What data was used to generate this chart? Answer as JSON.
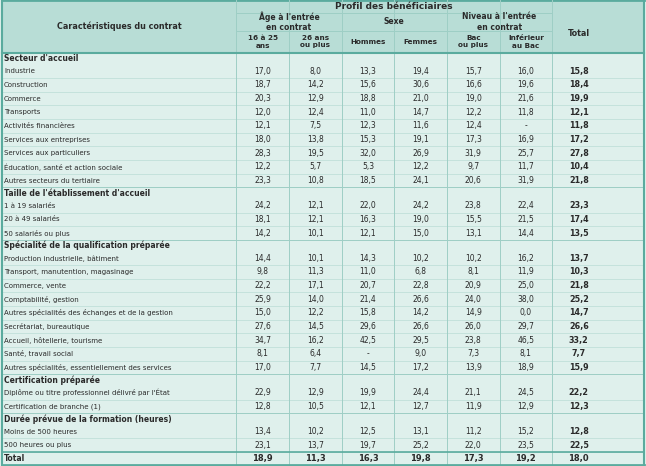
{
  "sections": [
    {
      "title": "Secteur d'accueil",
      "rows": [
        [
          "Industrie",
          17.0,
          8.0,
          13.3,
          19.4,
          15.7,
          16.0,
          15.8
        ],
        [
          "Construction",
          18.7,
          14.2,
          15.6,
          30.6,
          16.6,
          19.6,
          18.4
        ],
        [
          "Commerce",
          20.3,
          12.9,
          18.8,
          21.0,
          19.0,
          21.6,
          19.9
        ],
        [
          "Transports",
          12.0,
          12.4,
          11.0,
          14.7,
          12.2,
          11.8,
          12.1
        ],
        [
          "Activités financières",
          12.1,
          7.5,
          12.3,
          11.6,
          12.4,
          "-",
          11.8
        ],
        [
          "Services aux entreprises",
          18.0,
          13.8,
          15.3,
          19.1,
          17.3,
          16.9,
          17.2
        ],
        [
          "Services aux particuliers",
          28.3,
          19.5,
          32.0,
          26.9,
          31.9,
          25.7,
          27.8
        ],
        [
          "Éducation, santé et action sociale",
          12.2,
          5.7,
          5.3,
          12.2,
          9.7,
          11.7,
          10.4
        ],
        [
          "Autres secteurs du tertiaire",
          23.3,
          10.8,
          18.5,
          24.1,
          20.6,
          31.9,
          21.8
        ]
      ]
    },
    {
      "title": "Taille de l'établissement d'accueil",
      "rows": [
        [
          "1 à 19 salariés",
          24.2,
          12.1,
          22.0,
          24.2,
          23.8,
          22.4,
          23.3
        ],
        [
          "20 à 49 salariés",
          18.1,
          12.1,
          16.3,
          19.0,
          15.5,
          21.5,
          17.4
        ],
        [
          "50 salariés ou plus",
          14.2,
          10.1,
          12.1,
          15.0,
          13.1,
          14.4,
          13.5
        ]
      ]
    },
    {
      "title": "Spécialité de la qualification préparée",
      "rows": [
        [
          "Production industrielle, bâtiment",
          14.4,
          10.1,
          14.3,
          10.2,
          10.2,
          16.2,
          13.7
        ],
        [
          "Transport, manutention, magasinage",
          9.8,
          11.3,
          11.0,
          6.8,
          8.1,
          11.9,
          10.3
        ],
        [
          "Commerce, vente",
          22.2,
          17.1,
          20.7,
          22.8,
          20.9,
          25.0,
          21.8
        ],
        [
          "Comptabilité, gestion",
          25.9,
          14.0,
          21.4,
          26.6,
          24.0,
          38.0,
          25.2
        ],
        [
          "Autres spécialités des échanges et de la gestion",
          15.0,
          12.2,
          15.8,
          14.2,
          14.9,
          0.0,
          14.7
        ],
        [
          "Secrétariat, bureautique",
          27.6,
          14.5,
          29.6,
          26.6,
          26.0,
          29.7,
          26.6
        ],
        [
          "Accueil, hôtellerie, tourisme",
          34.7,
          16.2,
          42.5,
          29.5,
          23.8,
          46.5,
          33.2
        ],
        [
          "Santé, travail social",
          8.1,
          6.4,
          "-",
          9.0,
          7.3,
          8.1,
          7.7
        ],
        [
          "Autres spécialités, essentiellement des services",
          17.0,
          7.7,
          14.5,
          17.2,
          13.9,
          18.9,
          15.9
        ]
      ]
    },
    {
      "title": "Certification préparée",
      "rows": [
        [
          "Diplôme ou titre professionnel délivré par l'État",
          22.9,
          12.9,
          19.9,
          24.4,
          21.1,
          24.5,
          22.2
        ],
        [
          "Certification de branche (1)",
          12.8,
          10.5,
          12.1,
          12.7,
          11.9,
          12.9,
          12.3
        ]
      ]
    },
    {
      "title": "Durée prévue de la formation (heures)",
      "rows": [
        [
          "Moins de 500 heures",
          13.4,
          10.2,
          12.5,
          13.1,
          11.2,
          15.2,
          12.8
        ],
        [
          "500 heures ou plus",
          23.1,
          13.7,
          19.7,
          25.2,
          22.0,
          23.5,
          22.5
        ]
      ]
    }
  ],
  "total_row": [
    "Total",
    18.9,
    11.3,
    16.3,
    19.8,
    17.3,
    19.2,
    18.0
  ],
  "bg_header": "#b8ddd6",
  "bg_main": "#dff0ec",
  "border_light": "#9ecec5",
  "border_dark": "#5aab9e",
  "text_color": "#2a2a2a",
  "fig_w": 6.46,
  "fig_h": 4.66,
  "dpi": 100
}
